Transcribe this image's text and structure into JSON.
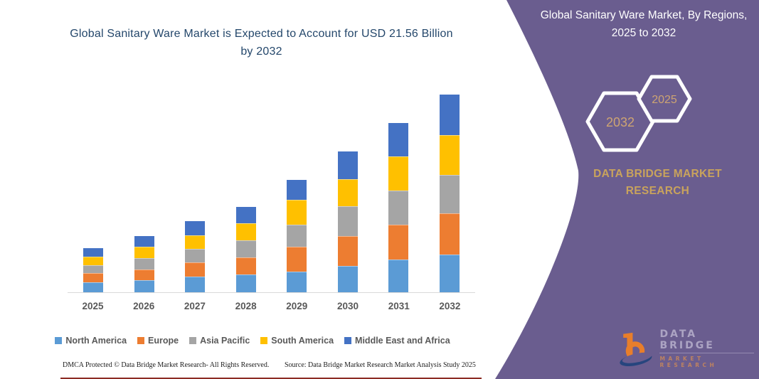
{
  "left_panel": {
    "title": "Global Sanitary Ware Market is Expected to Account for USD 21.56 Billion by 2032",
    "footer_left": "DMCA Protected © Data Bridge Market Research-  All Rights Reserved.",
    "footer_right": "Source: Data Bridge Market Research  Market Analysis Study 2025"
  },
  "right_panel": {
    "title": "Global Sanitary Ware Market, By Regions, 2025 to 2032",
    "hexagon_back_year": "2032",
    "hexagon_front_year": "2025",
    "brand_line1": "DATA BRIDGE MARKET",
    "brand_line2": "RESEARCH",
    "logo_line1": "DATA BRIDGE",
    "logo_line2": "MARKET RESEARCH",
    "background_color": "#6A5D8F",
    "accent_gold": "#C9A35C",
    "hexagon_year_color": "#CEA472"
  },
  "chart_data": {
    "type": "bar",
    "stacked": true,
    "title": "Global Sanitary Ware Market is Expected to Account for USD 21.56 Billion by 2032",
    "xlabel": "",
    "ylabel": "",
    "units": "USD Billion",
    "ylim": [
      0,
      21.56
    ],
    "grid": false,
    "legend_position": "bottom",
    "categories": [
      "2025",
      "2026",
      "2027",
      "2028",
      "2029",
      "2030",
      "2031",
      "2032"
    ],
    "series": [
      {
        "name": "North America",
        "color": "#5B9BD5",
        "values": [
          1.09,
          1.33,
          1.72,
          1.95,
          2.27,
          2.89,
          3.59,
          4.14
        ]
      },
      {
        "name": "Europe",
        "color": "#ED7D31",
        "values": [
          1.02,
          1.17,
          1.56,
          1.88,
          2.73,
          3.2,
          3.75,
          4.45
        ]
      },
      {
        "name": "Asia Pacific",
        "color": "#A5A5A5",
        "values": [
          0.86,
          1.25,
          1.48,
          1.88,
          2.34,
          3.28,
          3.75,
          4.22
        ]
      },
      {
        "name": "South America",
        "color": "#FFC000",
        "values": [
          0.94,
          1.25,
          1.48,
          1.8,
          2.73,
          2.97,
          3.75,
          4.37
        ]
      },
      {
        "name": "Middle East and Africa",
        "color": "#4472C4",
        "values": [
          0.86,
          1.17,
          1.48,
          1.8,
          2.19,
          3.05,
          3.59,
          4.38
        ]
      }
    ],
    "totals": [
      4.77,
      6.17,
      7.72,
      9.31,
      12.26,
      15.39,
      18.43,
      21.56
    ]
  }
}
